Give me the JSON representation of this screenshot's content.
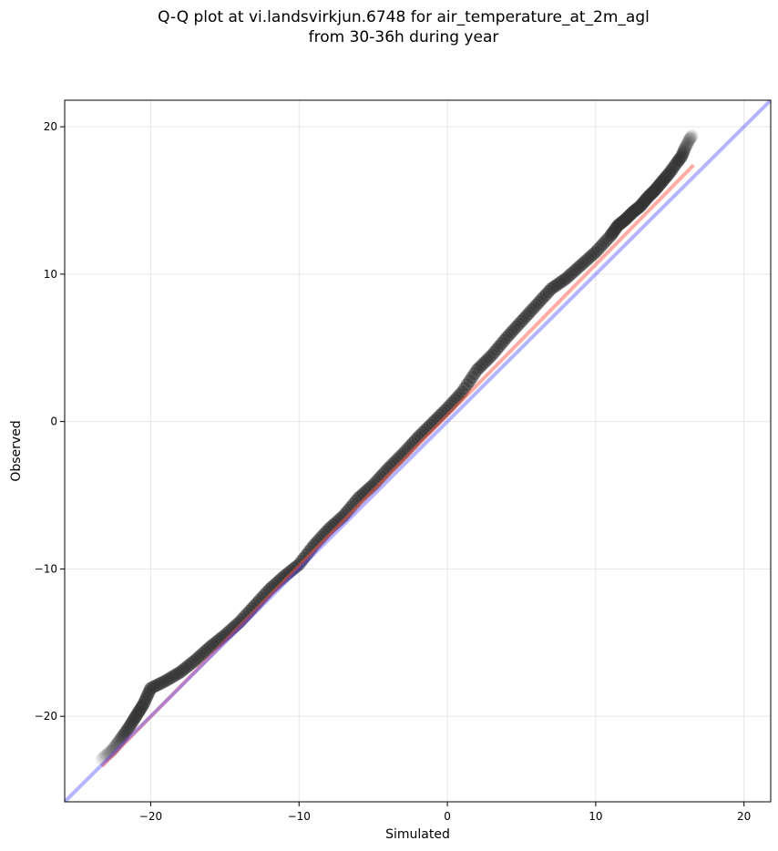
{
  "chart_data": {
    "type": "scatter",
    "title_lines": [
      "Q-Q plot at vi.landsvirkjun.6748 for air_temperature_at_2m_agl",
      "from 30-36h during year"
    ],
    "xlabel": "Simulated",
    "ylabel": "Observed",
    "xlim": [
      -25.8,
      21.8
    ],
    "ylim": [
      -25.8,
      21.8
    ],
    "xticks": [
      -20,
      -10,
      0,
      10,
      20
    ],
    "yticks": [
      -20,
      -10,
      0,
      10,
      20
    ],
    "tick_labels": {
      "x": [
        "−20",
        "−10",
        "0",
        "10",
        "20"
      ],
      "y": [
        "−20",
        "−10",
        "0",
        "10",
        "20"
      ]
    },
    "grid": true,
    "quantile_points": {
      "x": [
        -23.3,
        -22.6,
        -22.0,
        -21.5,
        -21.0,
        -20.5,
        -20.0,
        -19.0,
        -18.0,
        -17.0,
        -16.0,
        -15.0,
        -14.0,
        -13.0,
        -12.0,
        -11.0,
        -10.0,
        -9.0,
        -8.0,
        -7.0,
        -6.0,
        -5.0,
        -4.0,
        -3.0,
        -2.0,
        -1.0,
        0.0,
        1.0,
        2.0,
        3.0,
        4.0,
        5.0,
        6.0,
        7.0,
        8.0,
        9.0,
        10.0,
        11.0,
        11.5,
        12.0,
        12.5,
        13.0,
        13.5,
        14.0,
        14.5,
        15.0,
        15.5,
        15.8,
        16.0,
        16.3,
        16.5
      ],
      "y": [
        -22.9,
        -22.3,
        -21.5,
        -20.8,
        -20.0,
        -19.2,
        -18.1,
        -17.6,
        -17.0,
        -16.2,
        -15.3,
        -14.5,
        -13.6,
        -12.5,
        -11.4,
        -10.5,
        -9.7,
        -8.4,
        -7.3,
        -6.4,
        -5.2,
        -4.3,
        -3.2,
        -2.2,
        -1.1,
        -0.1,
        0.9,
        2.0,
        3.5,
        4.5,
        5.7,
        6.8,
        7.9,
        9.0,
        9.7,
        10.6,
        11.5,
        12.6,
        13.3,
        13.7,
        14.2,
        14.6,
        15.2,
        15.7,
        16.3,
        16.9,
        17.6,
        18.0,
        18.5,
        19.1,
        19.4
      ]
    },
    "fit_line_red": {
      "x": [
        -23.3,
        16.6
      ],
      "y": [
        -23.4,
        17.4
      ]
    },
    "identity_line_blue": {
      "x": [
        -25.8,
        21.8
      ],
      "y": [
        -25.8,
        21.8
      ]
    },
    "colors": {
      "points": "#333333",
      "fit_line": "#ff5a4a",
      "identity_line": "#3b3bff",
      "grid": "#e6e6e6",
      "axes": "#000000"
    }
  }
}
